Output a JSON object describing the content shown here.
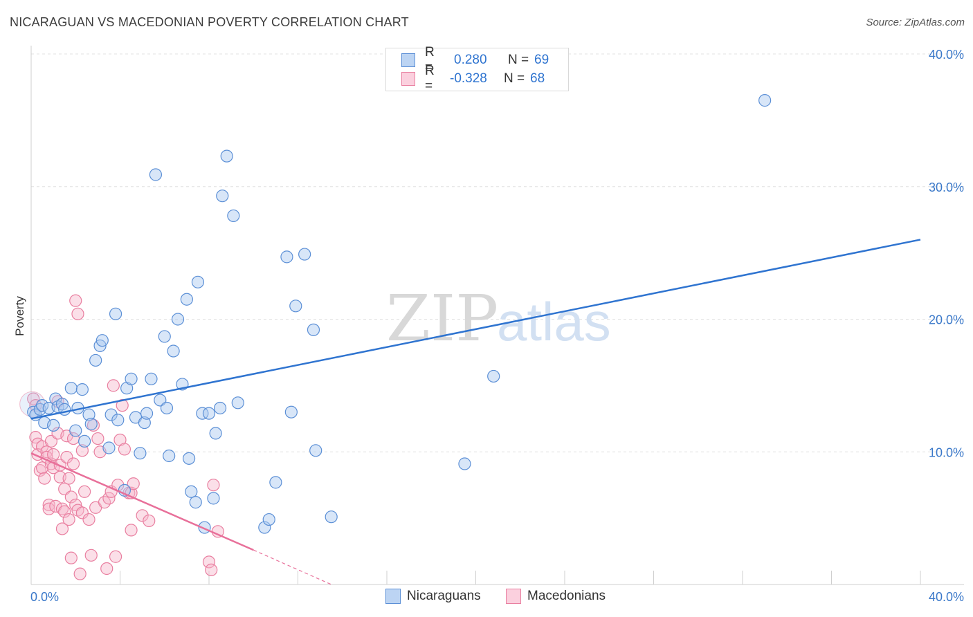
{
  "header": {
    "title": "NICARAGUAN VS MACEDONIAN POVERTY CORRELATION CHART",
    "source": "Source: ZipAtlas.com"
  },
  "legend": {
    "rows": [
      {
        "r_label": "R =",
        "r_value": "0.280",
        "n_label": "N =",
        "n_value": "69"
      },
      {
        "r_label": "R =",
        "r_value": "-0.328",
        "n_label": "N =",
        "n_value": "68"
      }
    ]
  },
  "bottom_legend": {
    "items": [
      {
        "label": "Nicaraguans"
      },
      {
        "label": "Macedonians"
      }
    ]
  },
  "colors": {
    "blue_fill": "#a9c8f0",
    "blue_stroke": "#5b8fd6",
    "blue_line": "#2f74d0",
    "pink_fill": "#f7b8cc",
    "pink_stroke": "#e97fa0",
    "pink_line": "#e8709a",
    "axis_label": "#3a78c9",
    "grid": "#e0e0e0"
  },
  "chart_data": {
    "type": "scatter",
    "title": "NICARAGUAN VS MACEDONIAN POVERTY CORRELATION CHART",
    "xlabel": "",
    "ylabel": "Poverty",
    "xlim": [
      0,
      40
    ],
    "ylim": [
      0,
      40
    ],
    "x_tick_labels": [
      "0.0%",
      "40.0%"
    ],
    "y_ticks": [
      10,
      20,
      30,
      40
    ],
    "y_tick_labels": [
      "10.0%",
      "20.0%",
      "30.0%",
      "40.0%"
    ],
    "watermark": {
      "zip": "ZIP",
      "atlas": "atlas"
    },
    "series": [
      {
        "name": "Nicaraguans",
        "r": 0.28,
        "n": 69,
        "trend": {
          "x": [
            0,
            40
          ],
          "y": [
            12.5,
            26.0
          ]
        },
        "points": [
          [
            0.1,
            13.0
          ],
          [
            0.2,
            12.8
          ],
          [
            0.4,
            13.2
          ],
          [
            0.5,
            13.5
          ],
          [
            0.6,
            12.2
          ],
          [
            0.8,
            13.3
          ],
          [
            1.0,
            12.0
          ],
          [
            1.1,
            14.0
          ],
          [
            1.2,
            13.4
          ],
          [
            1.4,
            13.6
          ],
          [
            1.5,
            13.2
          ],
          [
            1.8,
            14.8
          ],
          [
            2.0,
            11.6
          ],
          [
            2.1,
            13.3
          ],
          [
            2.3,
            14.7
          ],
          [
            2.4,
            10.8
          ],
          [
            2.6,
            12.8
          ],
          [
            2.7,
            12.1
          ],
          [
            2.9,
            16.9
          ],
          [
            3.1,
            18.0
          ],
          [
            3.2,
            18.4
          ],
          [
            3.5,
            10.3
          ],
          [
            3.6,
            12.8
          ],
          [
            3.8,
            20.4
          ],
          [
            3.9,
            12.4
          ],
          [
            4.2,
            7.1
          ],
          [
            4.3,
            14.8
          ],
          [
            4.5,
            15.5
          ],
          [
            4.7,
            12.6
          ],
          [
            4.9,
            9.9
          ],
          [
            5.1,
            12.2
          ],
          [
            5.2,
            12.9
          ],
          [
            5.4,
            15.5
          ],
          [
            5.6,
            30.9
          ],
          [
            5.8,
            13.9
          ],
          [
            6.0,
            18.7
          ],
          [
            6.1,
            13.3
          ],
          [
            6.2,
            9.7
          ],
          [
            6.4,
            17.6
          ],
          [
            6.6,
            20.0
          ],
          [
            6.8,
            15.1
          ],
          [
            7.0,
            21.5
          ],
          [
            7.1,
            9.5
          ],
          [
            7.2,
            7.0
          ],
          [
            7.4,
            6.2
          ],
          [
            7.5,
            22.8
          ],
          [
            7.7,
            12.9
          ],
          [
            7.8,
            4.3
          ],
          [
            8.0,
            12.9
          ],
          [
            8.2,
            6.5
          ],
          [
            8.3,
            11.4
          ],
          [
            8.5,
            13.3
          ],
          [
            8.6,
            29.3
          ],
          [
            8.8,
            32.3
          ],
          [
            9.1,
            27.8
          ],
          [
            9.3,
            13.7
          ],
          [
            10.5,
            4.3
          ],
          [
            10.7,
            4.9
          ],
          [
            11.0,
            7.7
          ],
          [
            11.5,
            24.7
          ],
          [
            11.7,
            13.0
          ],
          [
            11.9,
            21.0
          ],
          [
            12.3,
            24.9
          ],
          [
            12.7,
            19.2
          ],
          [
            12.8,
            10.1
          ],
          [
            13.5,
            5.1
          ],
          [
            19.5,
            9.1
          ],
          [
            20.8,
            15.7
          ],
          [
            33.0,
            36.5
          ]
        ]
      },
      {
        "name": "Macedonians",
        "r": -0.328,
        "n": 68,
        "trend": {
          "x": [
            0,
            10.0
          ],
          "y": [
            9.9,
            2.6
          ]
        },
        "trend_dashed": {
          "x": [
            10.0,
            13.5
          ],
          "y": [
            2.6,
            0.0
          ]
        },
        "points": [
          [
            0.1,
            14.0
          ],
          [
            0.2,
            13.5
          ],
          [
            0.2,
            11.1
          ],
          [
            0.3,
            10.6
          ],
          [
            0.3,
            9.8
          ],
          [
            0.4,
            8.6
          ],
          [
            0.5,
            10.4
          ],
          [
            0.5,
            8.8
          ],
          [
            0.6,
            8.0
          ],
          [
            0.7,
            10.0
          ],
          [
            0.7,
            9.6
          ],
          [
            0.8,
            6.0
          ],
          [
            0.8,
            5.7
          ],
          [
            0.9,
            10.8
          ],
          [
            0.9,
            9.1
          ],
          [
            1.0,
            8.8
          ],
          [
            1.0,
            9.8
          ],
          [
            1.1,
            5.9
          ],
          [
            1.2,
            11.4
          ],
          [
            1.2,
            13.8
          ],
          [
            1.3,
            8.1
          ],
          [
            1.3,
            9.0
          ],
          [
            1.4,
            5.7
          ],
          [
            1.4,
            4.2
          ],
          [
            1.5,
            7.2
          ],
          [
            1.5,
            5.5
          ],
          [
            1.6,
            11.2
          ],
          [
            1.6,
            9.6
          ],
          [
            1.7,
            8.0
          ],
          [
            1.7,
            4.9
          ],
          [
            1.8,
            6.6
          ],
          [
            1.8,
            2.0
          ],
          [
            1.9,
            9.1
          ],
          [
            1.9,
            11.0
          ],
          [
            2.0,
            6.0
          ],
          [
            2.0,
            21.4
          ],
          [
            2.1,
            5.6
          ],
          [
            2.1,
            20.4
          ],
          [
            2.2,
            0.8
          ],
          [
            2.3,
            5.4
          ],
          [
            2.3,
            10.1
          ],
          [
            2.4,
            7.0
          ],
          [
            2.6,
            4.9
          ],
          [
            2.7,
            2.2
          ],
          [
            2.8,
            12.0
          ],
          [
            2.9,
            5.8
          ],
          [
            3.0,
            11.0
          ],
          [
            3.1,
            10.0
          ],
          [
            3.3,
            6.2
          ],
          [
            3.4,
            1.2
          ],
          [
            3.5,
            6.5
          ],
          [
            3.6,
            7.0
          ],
          [
            3.7,
            15.0
          ],
          [
            3.8,
            2.1
          ],
          [
            3.9,
            7.5
          ],
          [
            4.0,
            10.9
          ],
          [
            4.1,
            13.5
          ],
          [
            4.2,
            10.2
          ],
          [
            4.4,
            6.9
          ],
          [
            4.5,
            4.1
          ],
          [
            4.5,
            6.9
          ],
          [
            4.6,
            7.6
          ],
          [
            5.0,
            5.2
          ],
          [
            5.3,
            4.8
          ],
          [
            8.0,
            1.7
          ],
          [
            8.1,
            1.1
          ],
          [
            8.2,
            7.5
          ],
          [
            8.4,
            4.0
          ]
        ]
      }
    ]
  }
}
